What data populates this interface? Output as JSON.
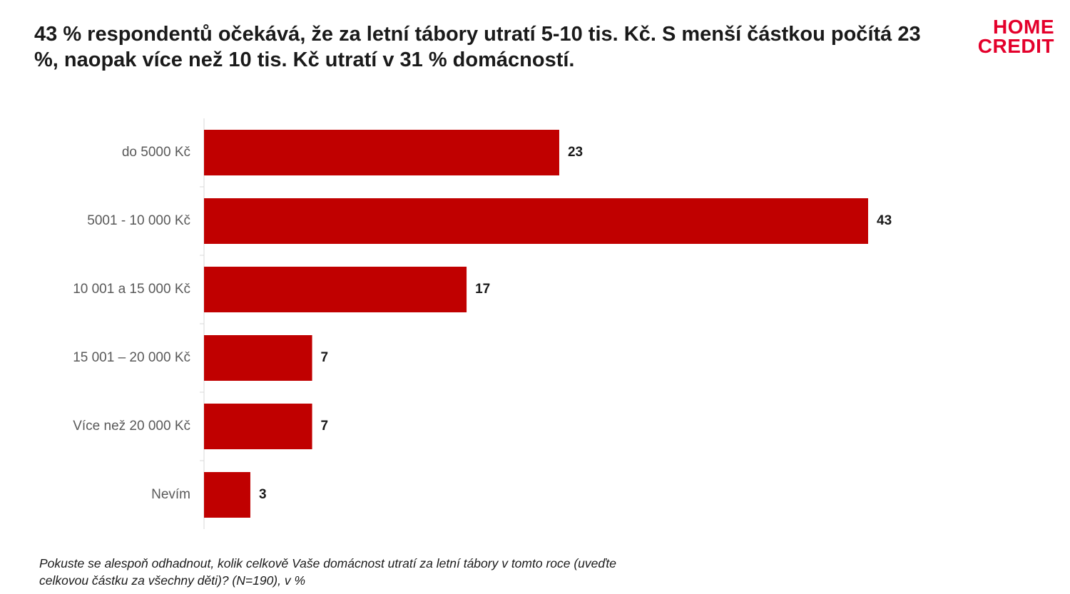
{
  "header": {
    "headline": "43 % respondentů očekává, že za letní tábory utratí 5-10 tis. Kč. S menší částkou počítá 23 %, naopak více než 10 tis. Kč utratí v 31 % domácností."
  },
  "logo": {
    "line1": "HOME",
    "line2": "CREDIT",
    "color": "#e4002b"
  },
  "chart_data": {
    "type": "bar",
    "orientation": "horizontal",
    "categories": [
      "do 5000 Kč",
      "5001 - 10 000 Kč",
      "10 001 a 15 000 Kč",
      "15 001 – 20 000 Kč",
      "Více než 20 000 Kč",
      "Nevím"
    ],
    "values": [
      23,
      43,
      17,
      7,
      7,
      3
    ],
    "data_labels": [
      "23",
      "43",
      "17",
      "7",
      "7",
      "3"
    ],
    "title": "",
    "xlabel": "",
    "ylabel": "",
    "xlim": [
      0,
      50
    ],
    "grid": false,
    "legend": "none",
    "bar_color": "#c00000"
  },
  "footnote": {
    "text": "Pokuste se alespoň odhadnout, kolik celkově Vaše domácnost utratí za letní tábory v tomto roce (uveďte celkovou částku za všechny děti)? (N=190), v %"
  }
}
